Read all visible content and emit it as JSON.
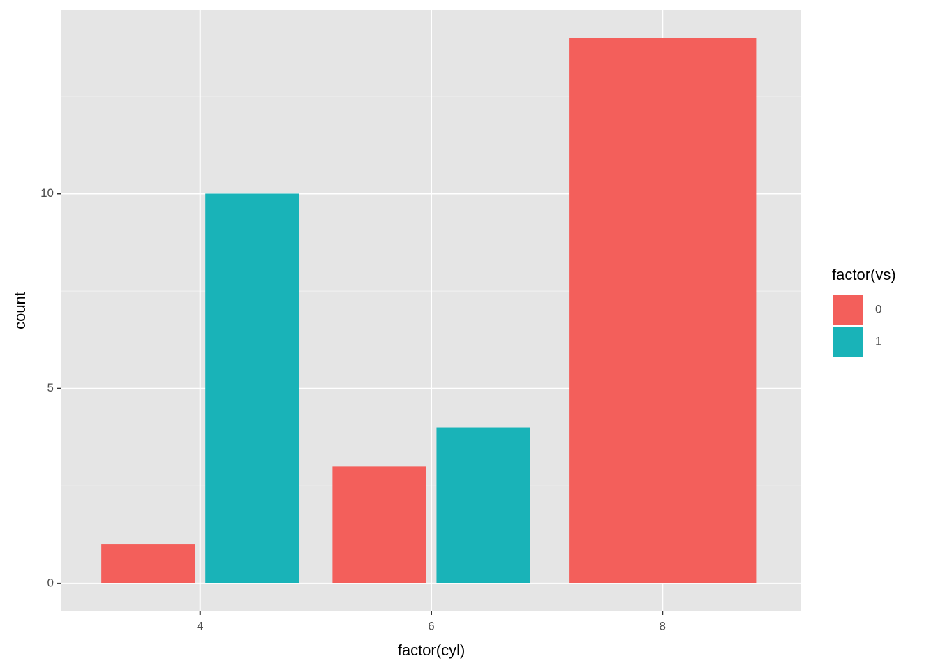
{
  "chart_data": {
    "type": "bar",
    "x_label": "factor(cyl)",
    "y_label": "count",
    "categories": [
      "4",
      "6",
      "8"
    ],
    "legend_title": "factor(vs)",
    "series": [
      {
        "name": "0",
        "color": "#f35f5b",
        "values": [
          1,
          3,
          14
        ]
      },
      {
        "name": "1",
        "color": "#19b3b8",
        "values": [
          10,
          4,
          null
        ]
      }
    ],
    "ylim": [
      -0.7,
      14.7
    ],
    "yticks": [
      0,
      5,
      10
    ],
    "grid": true,
    "legend": "right"
  }
}
